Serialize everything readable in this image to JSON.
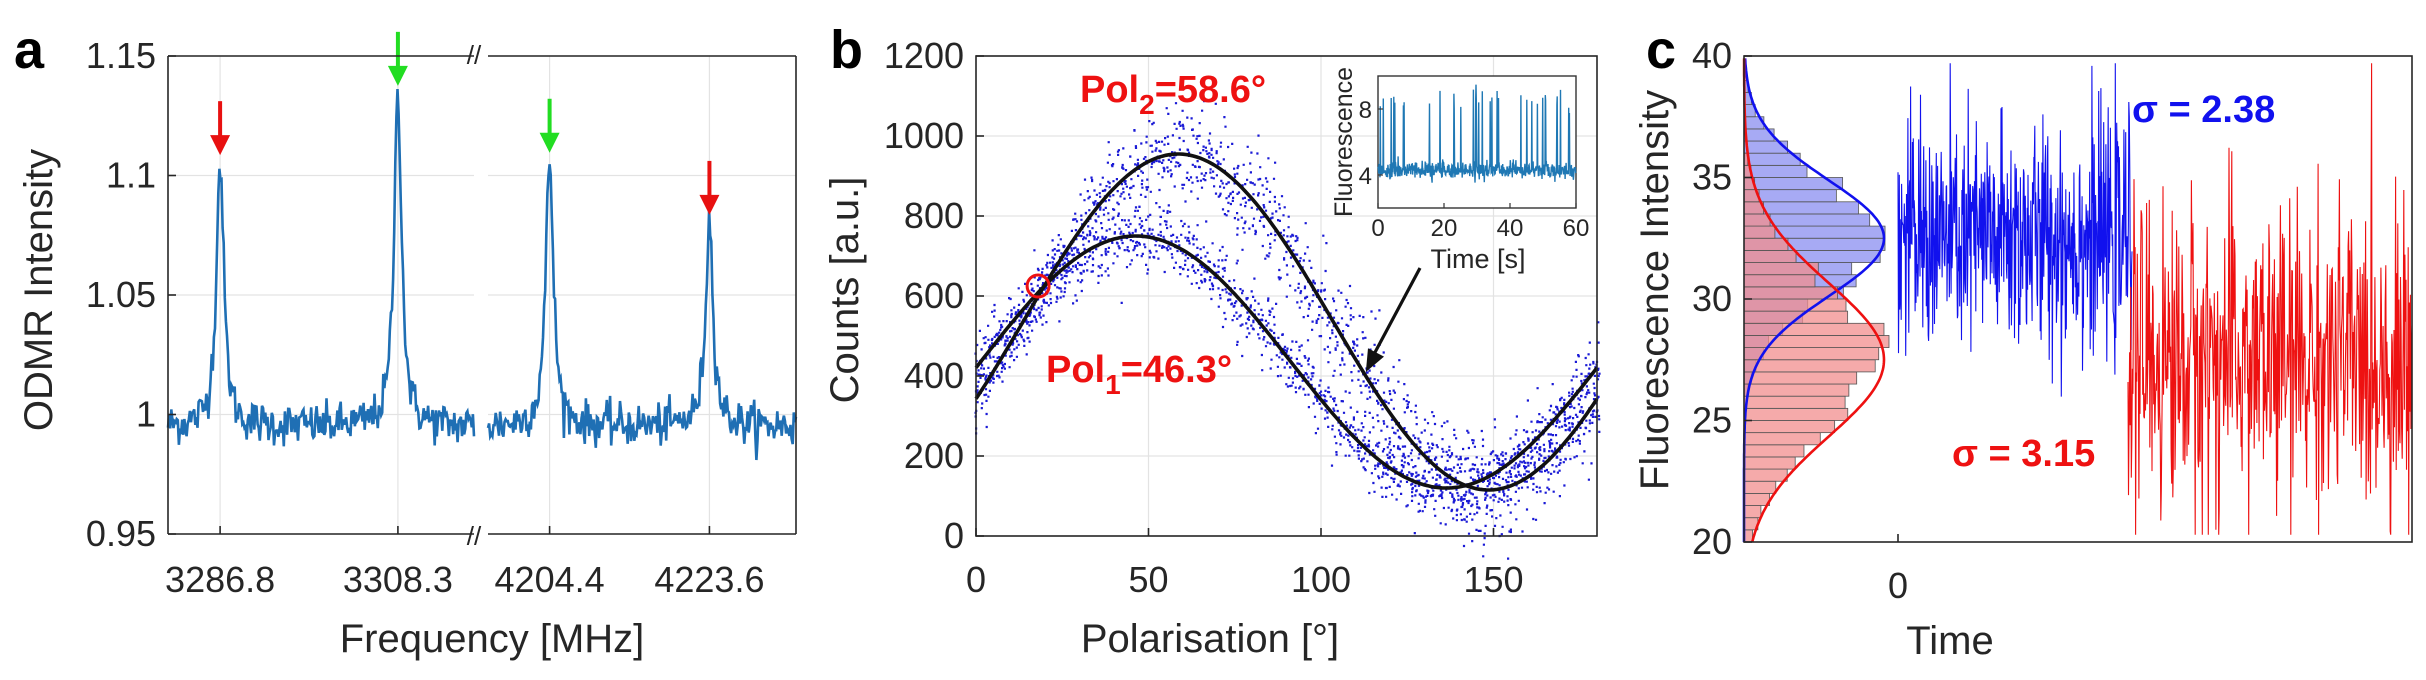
{
  "chart_data": [
    {
      "panel": "a",
      "type": "line",
      "xlabel": "Frequency [MHz]",
      "ylabel": "ODMR Intensity",
      "ylim": [
        0.95,
        1.15
      ],
      "yticks": [
        0.95,
        1,
        1.05,
        1.1,
        1.15
      ],
      "ytick_labels": [
        "0.95",
        "1",
        "1.05",
        "1.1",
        "1.15"
      ],
      "xtick_labels": [
        "3286.8",
        "3308.3",
        "4204.4",
        "4223.6"
      ],
      "axis_break": "//",
      "series_color": "#1f6fb4",
      "baseline": 0.995,
      "noise": 0.008,
      "peaks": [
        {
          "freq": 3286.8,
          "height": 1.106,
          "arrow": "red"
        },
        {
          "freq": 3308.3,
          "height": 1.135,
          "arrow": "green"
        },
        {
          "freq": 4204.4,
          "height": 1.107,
          "arrow": "green"
        },
        {
          "freq": 4223.6,
          "height": 1.081,
          "arrow": "red"
        }
      ],
      "arrow_colors": {
        "red": "#e81010",
        "green": "#22dd22"
      }
    },
    {
      "panel": "b",
      "type": "scatter",
      "xlabel": "Polarisation [°]",
      "ylabel": "Counts [a.u.]",
      "xlim": [
        0,
        180
      ],
      "ylim": [
        0,
        1200
      ],
      "xticks": [
        0,
        50,
        100,
        150
      ],
      "yticks": [
        0,
        200,
        400,
        600,
        800,
        1000,
        1200
      ],
      "scatter_color": "#1a1ad6",
      "fit_color": "#111111",
      "series": [
        {
          "name": "Pol1",
          "mean": 435,
          "amplitude": 315,
          "phase_deg": 46.3,
          "scatter_spread": 40
        },
        {
          "name": "Pol2",
          "mean": 535,
          "amplitude": 420,
          "phase_deg": 58.6,
          "scatter_spread": 60
        }
      ],
      "annotations": {
        "pol1": {
          "base": "Pol",
          "sub": "1",
          "rest": "=46.3°"
        },
        "pol2": {
          "base": "Pol",
          "sub": "2",
          "rest": "=58.6°"
        }
      },
      "marked_point": {
        "x": 18,
        "y": 625,
        "color": "#ee1111"
      },
      "inset": {
        "xlabel": "Time [s]",
        "ylabel": "Fluorescence",
        "xlim": [
          0,
          60
        ],
        "ylim": [
          2,
          10
        ],
        "xticks": [
          0,
          20,
          40,
          60
        ],
        "yticks": [
          4,
          8
        ],
        "baseline": 4.3,
        "high_level": 8.5,
        "color": "#1f78b4"
      },
      "inset_pointer_target": {
        "x": 113,
        "y": 410
      }
    },
    {
      "panel": "c",
      "type": "histogram+line",
      "xlabel": "Time",
      "ylabel": "Fluorescence Intensity",
      "ylim": [
        20,
        40
      ],
      "yticks": [
        20,
        25,
        30,
        35,
        40
      ],
      "xtick_labels": [
        "0"
      ],
      "series": [
        {
          "name": "blue",
          "mean": 32.5,
          "sigma": 2.38,
          "label": "σ = 2.38",
          "color": "#1111ee",
          "hist_fill": "#8a8ef0"
        },
        {
          "name": "red",
          "mean": 27.5,
          "sigma": 3.15,
          "label": "σ = 3.15",
          "color": "#ee1111",
          "hist_fill": "#f28e8e"
        }
      ]
    }
  ]
}
